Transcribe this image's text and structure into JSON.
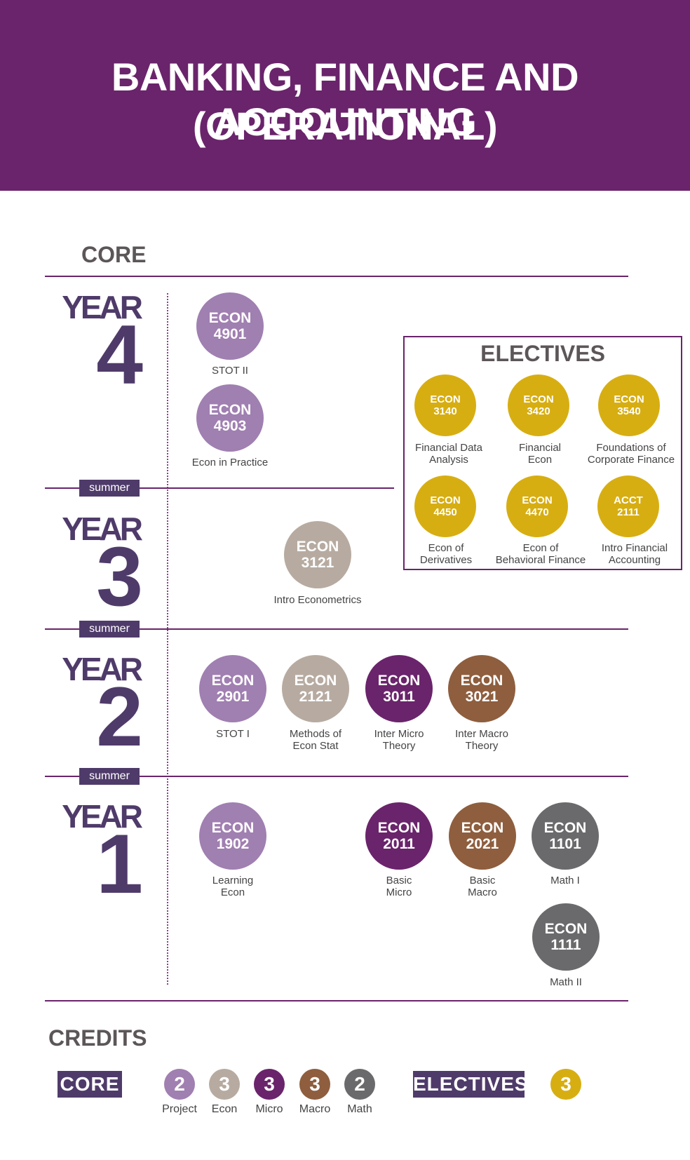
{
  "title": {
    "line1": "BANKING, FINANCE AND ACCOUNTING",
    "line2": "(OPERATIONAL)"
  },
  "core_label": "CORE",
  "years": [
    {
      "word": "YEAR",
      "number": "4"
    },
    {
      "word": "YEAR",
      "number": "3"
    },
    {
      "word": "YEAR",
      "number": "2"
    },
    {
      "word": "YEAR",
      "number": "1"
    }
  ],
  "summer_label": "summer",
  "colors": {
    "header": "#6a246b",
    "project": "#a07fb1",
    "econ": "#b7aba1",
    "micro": "#6a246b",
    "macro": "#8e5e3e",
    "math": "#6a6a6c",
    "elective": "#d7ae12",
    "year_text": "#4f3b6a"
  },
  "courses": {
    "econ4901": {
      "code": "ECON",
      "num": "4901",
      "name": "STOT II"
    },
    "econ4903": {
      "code": "ECON",
      "num": "4903",
      "name": "Econ in Practice"
    },
    "econ3121": {
      "code": "ECON",
      "num": "3121",
      "name": "Intro Econometrics"
    },
    "econ2901": {
      "code": "ECON",
      "num": "2901",
      "name": "STOT I"
    },
    "econ2121": {
      "code": "ECON",
      "num": "2121",
      "name_l1": "Methods of",
      "name_l2": "Econ Stat"
    },
    "econ3011": {
      "code": "ECON",
      "num": "3011",
      "name_l1": "Inter Micro",
      "name_l2": "Theory"
    },
    "econ3021": {
      "code": "ECON",
      "num": "3021",
      "name_l1": "Inter Macro",
      "name_l2": "Theory"
    },
    "econ1902": {
      "code": "ECON",
      "num": "1902",
      "name_l1": "Learning",
      "name_l2": "Econ"
    },
    "econ2011": {
      "code": "ECON",
      "num": "2011",
      "name_l1": "Basic",
      "name_l2": "Micro"
    },
    "econ2021": {
      "code": "ECON",
      "num": "2021",
      "name_l1": "Basic",
      "name_l2": "Macro"
    },
    "econ1101": {
      "code": "ECON",
      "num": "1101",
      "name": "Math I"
    },
    "econ1111": {
      "code": "ECON",
      "num": "1111",
      "name": "Math II"
    }
  },
  "electives": {
    "title": "ELECTIVES",
    "items": [
      {
        "code": "ECON",
        "num": "3140",
        "name_l1": "Financial Data",
        "name_l2": "Analysis"
      },
      {
        "code": "ECON",
        "num": "3420",
        "name_l1": "Financial",
        "name_l2": "Econ"
      },
      {
        "code": "ECON",
        "num": "3540",
        "name_l1": "Foundations of",
        "name_l2": "Corporate Finance"
      },
      {
        "code": "ECON",
        "num": "4450",
        "name_l1": "Econ of",
        "name_l2": "Derivatives"
      },
      {
        "code": "ECON",
        "num": "4470",
        "name_l1": "Econ of",
        "name_l2": "Behavioral Finance"
      },
      {
        "code": "ACCT",
        "num": "2111",
        "name_l1": "Intro Financial",
        "name_l2": "Accounting"
      }
    ]
  },
  "credits": {
    "title": "CREDITS",
    "core_tag": "CORE",
    "electives_tag": "ELECTIVES",
    "core_items": [
      {
        "value": "2",
        "label": "Project"
      },
      {
        "value": "3",
        "label": "Econ"
      },
      {
        "value": "3",
        "label": "Micro"
      },
      {
        "value": "3",
        "label": "Macro"
      },
      {
        "value": "2",
        "label": "Math"
      }
    ],
    "elective_value": "3"
  }
}
